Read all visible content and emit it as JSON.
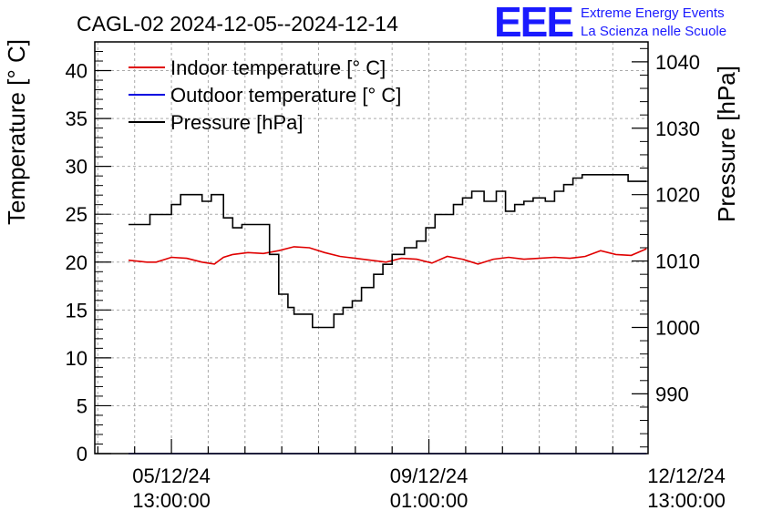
{
  "chart_data": {
    "type": "line",
    "title": "CAGL-02 2024-12-05--2024-12-14",
    "ylabel": "Temperature [° C]",
    "y2label": "Pressure [hPa]",
    "ylim": [
      0,
      43
    ],
    "y2lim": [
      981,
      1043
    ],
    "y_ticks": [
      "0",
      "5",
      "10",
      "15",
      "20",
      "25",
      "30",
      "35",
      "40"
    ],
    "y2_ticks": [
      "990",
      "1000",
      "1010",
      "1020",
      "1030",
      "1040"
    ],
    "x_tick_labels": [
      {
        "date": "05/12/24",
        "time": "13:00:00",
        "hours": 0
      },
      {
        "date": "09/12/24",
        "time": "01:00:00",
        "hours": 84
      },
      {
        "date": "12/12/24",
        "time": "13:00:00",
        "hours": 168
      }
    ],
    "x_unit": "hours after 05/12/24 13:00:00",
    "xlim": [
      -25,
      155.5
    ],
    "grid": true,
    "legend_position": "top-left",
    "series": [
      {
        "name": "Indoor temperature [° C]",
        "axis": "left",
        "color": "#e00000",
        "x": [
          -14,
          -8,
          -5,
          0,
          5,
          10,
          14,
          17,
          20,
          25,
          30,
          35,
          40,
          45,
          50,
          55,
          60,
          65,
          70,
          75,
          80,
          85,
          90,
          95,
          100,
          105,
          110,
          115,
          120,
          125,
          130,
          135,
          140,
          145,
          150,
          155
        ],
        "y": [
          20.2,
          20.0,
          20.0,
          20.5,
          20.4,
          20.0,
          19.8,
          20.5,
          20.8,
          21.0,
          20.9,
          21.2,
          21.6,
          21.5,
          21.0,
          20.6,
          20.4,
          20.2,
          20.0,
          20.4,
          20.3,
          19.9,
          20.6,
          20.3,
          19.8,
          20.3,
          20.5,
          20.3,
          20.4,
          20.5,
          20.4,
          20.6,
          21.2,
          20.8,
          20.7,
          21.4
        ]
      },
      {
        "name": "Outdoor temperature [° C]",
        "axis": "left",
        "color": "#0000e0",
        "x": [
          -14,
          155
        ],
        "y": [
          0.0,
          0.0
        ]
      },
      {
        "name": "Pressure [hPa]",
        "axis": "right",
        "color": "#000000",
        "x": [
          -14,
          -10,
          -7,
          -3,
          0,
          3,
          7,
          10,
          13,
          17,
          20,
          23,
          28,
          32,
          35,
          38,
          40,
          43,
          46,
          50,
          53,
          56,
          59,
          62,
          66,
          69,
          72,
          76,
          80,
          83,
          86,
          89,
          92,
          95,
          98,
          102,
          106,
          109,
          112,
          115,
          118,
          122,
          125,
          128,
          131,
          134,
          137,
          140,
          143,
          146,
          149,
          152,
          155
        ],
        "y": [
          1015.5,
          1015.5,
          1017,
          1017,
          1018.5,
          1020,
          1020,
          1019,
          1020,
          1016.5,
          1015,
          1015.5,
          1015.5,
          1011,
          1005,
          1003,
          1002,
          1002,
          1000,
          1000,
          1002,
          1003,
          1004,
          1006,
          1008,
          1009.5,
          1011,
          1012,
          1013,
          1015,
          1017,
          1017,
          1018.5,
          1019.5,
          1020.5,
          1019,
          1020.5,
          1017.5,
          1018.5,
          1019,
          1019.5,
          1019,
          1020.5,
          1021.5,
          1022.5,
          1023,
          1023,
          1023,
          1023,
          1023,
          1022,
          1022,
          1022
        ]
      }
    ]
  },
  "logo": {
    "mark": "EEE",
    "line1": "Extreme Energy Events",
    "line2": "La Scienza nelle Scuole"
  }
}
